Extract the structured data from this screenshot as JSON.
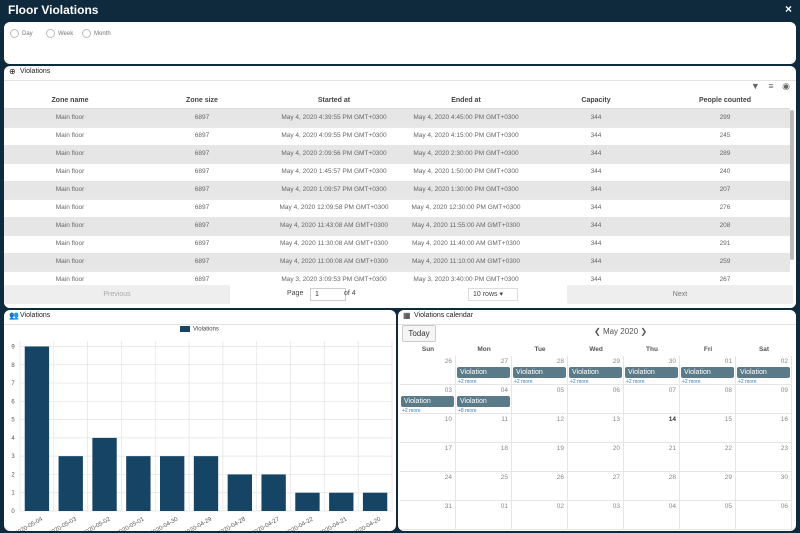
{
  "window": {
    "title": "Floor Violations",
    "close": "×"
  },
  "filter": {
    "options": [
      "Day",
      "Week",
      "Month"
    ]
  },
  "table": {
    "title": "Violations",
    "columns": [
      "Zone name",
      "Zone size",
      "Started at",
      "Ended at",
      "Capacity",
      "People counted"
    ],
    "rows": [
      [
        "Main floor",
        "6897",
        "May 4, 2020 4:39:55 PM GMT+0300",
        "May 4, 2020 4:45:00 PM GMT+0300",
        "344",
        "299"
      ],
      [
        "Main floor",
        "6897",
        "May 4, 2020 4:09:55 PM GMT+0300",
        "May 4, 2020 4:15:00 PM GMT+0300",
        "344",
        "245"
      ],
      [
        "Main floor",
        "6897",
        "May 4, 2020 2:09:56 PM GMT+0300",
        "May 4, 2020 2:30:00 PM GMT+0300",
        "344",
        "289"
      ],
      [
        "Main floor",
        "6897",
        "May 4, 2020 1:45:57 PM GMT+0300",
        "May 4, 2020 1:50:00 PM GMT+0300",
        "344",
        "240"
      ],
      [
        "Main floor",
        "6897",
        "May 4, 2020 1:09:57 PM GMT+0300",
        "May 4, 2020 1:30:00 PM GMT+0300",
        "344",
        "207"
      ],
      [
        "Main floor",
        "6897",
        "May 4, 2020 12:09:58 PM GMT+0300",
        "May 4, 2020 12:30:00 PM GMT+0300",
        "344",
        "276"
      ],
      [
        "Main floor",
        "6897",
        "May 4, 2020 11:43:08 AM GMT+0300",
        "May 4, 2020 11:55:00 AM GMT+0300",
        "344",
        "208"
      ],
      [
        "Main floor",
        "6897",
        "May 4, 2020 11:30:08 AM GMT+0300",
        "May 4, 2020 11:40:00 AM GMT+0300",
        "344",
        "291"
      ],
      [
        "Main floor",
        "6897",
        "May 4, 2020 11:00:08 AM GMT+0300",
        "May 4, 2020 11:10:00 AM GMT+0300",
        "344",
        "259"
      ],
      [
        "Main floor",
        "6897",
        "May 3, 2020 3:09:53 PM GMT+0300",
        "May 3, 2020 3:40:00 PM GMT+0300",
        "344",
        "267"
      ]
    ],
    "pager": {
      "previous": "Previous",
      "page_label": "Page",
      "page": "1",
      "of": "of 4",
      "rows_select": "10 rows",
      "next": "Next"
    }
  },
  "chart_panel": {
    "title": "Violations"
  },
  "chart_data": {
    "type": "bar",
    "legend": "Violations",
    "categories": [
      "2020-05-04",
      "2020-05-03",
      "2020-05-02",
      "2020-05-01",
      "2020-04-30",
      "2020-04-29",
      "2020-04-28",
      "2020-04-27",
      "2020-04-22",
      "2020-04-21",
      "2020-04-20"
    ],
    "values": [
      9,
      3,
      4,
      3,
      3,
      3,
      2,
      2,
      1,
      1,
      1
    ],
    "yticks": [
      "0",
      "1",
      "2",
      "3",
      "4",
      "5",
      "6",
      "7",
      "8",
      "9"
    ],
    "ylim": [
      0,
      9
    ],
    "color": "#154464"
  },
  "calendar": {
    "title": "Violations calendar",
    "today": "Today",
    "month": "May 2020",
    "prev": "❮",
    "next": "❯",
    "daynames": [
      "Sun",
      "Mon",
      "Tue",
      "Wed",
      "Thu",
      "Fri",
      "Sat"
    ],
    "weeks": [
      [
        "26",
        "27",
        "28",
        "29",
        "30",
        "01",
        "02"
      ],
      [
        "03",
        "04",
        "05",
        "06",
        "07",
        "08",
        "09"
      ],
      [
        "10",
        "11",
        "12",
        "13",
        "14",
        "15",
        "16"
      ],
      [
        "17",
        "18",
        "19",
        "20",
        "21",
        "22",
        "23"
      ],
      [
        "24",
        "25",
        "26",
        "27",
        "28",
        "29",
        "30"
      ],
      [
        "31",
        "01",
        "02",
        "03",
        "04",
        "05",
        "06"
      ]
    ],
    "event_label": "Violation",
    "more_label": "+2 more",
    "more_label_alt": "+8 more"
  }
}
